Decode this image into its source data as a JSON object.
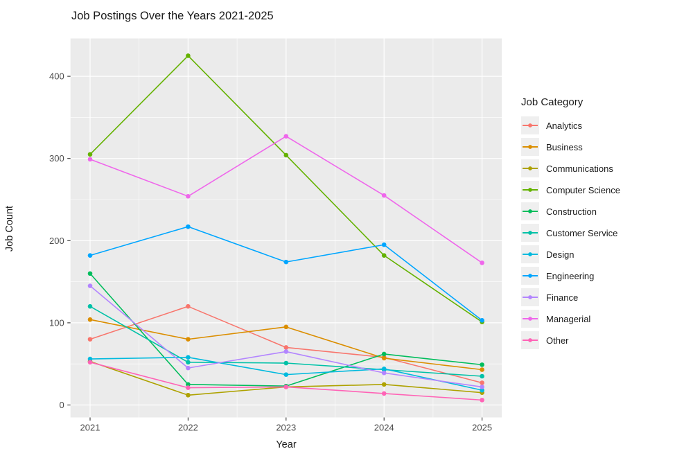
{
  "chart_data": {
    "type": "line",
    "title": "Job Postings Over the Years 2021-2025",
    "xlabel": "Year",
    "ylabel": "Job Count",
    "legend_title": "Job Category",
    "legend_position": "right",
    "panel_background": "#EBEBEB",
    "grid": "white major and minor gridlines on gray panel",
    "x": [
      2021,
      2022,
      2023,
      2024,
      2025
    ],
    "x_tick_labels": [
      "2021",
      "2022",
      "2023",
      "2024",
      "2025"
    ],
    "y_ticks": [
      0,
      100,
      200,
      300,
      400
    ],
    "y_tick_labels": [
      "0",
      "100",
      "200",
      "300",
      "400"
    ],
    "ylim": [
      -15,
      446
    ],
    "xlim": [
      2020.8,
      2025.2
    ],
    "series": [
      {
        "name": "Analytics",
        "color": "#F8766D",
        "values": [
          80,
          120,
          70,
          58,
          27
        ]
      },
      {
        "name": "Business",
        "color": "#DB8E00",
        "values": [
          104,
          80,
          95,
          57,
          43
        ]
      },
      {
        "name": "Communications",
        "color": "#AEA200",
        "values": [
          53,
          12,
          22,
          25,
          15
        ]
      },
      {
        "name": "Computer Science",
        "color": "#64B200",
        "values": [
          305,
          425,
          304,
          182,
          101
        ]
      },
      {
        "name": "Construction",
        "color": "#00BD5C",
        "values": [
          160,
          25,
          23,
          62,
          49
        ]
      },
      {
        "name": "Customer Service",
        "color": "#00C1A7",
        "values": [
          120,
          52,
          51,
          43,
          35
        ]
      },
      {
        "name": "Design",
        "color": "#00BADE",
        "values": [
          56,
          58,
          37,
          44,
          18
        ]
      },
      {
        "name": "Engineering",
        "color": "#00A6FF",
        "values": [
          182,
          217,
          174,
          195,
          103
        ]
      },
      {
        "name": "Finance",
        "color": "#B385FF",
        "values": [
          145,
          45,
          65,
          39,
          22
        ]
      },
      {
        "name": "Managerial",
        "color": "#EF67EB",
        "values": [
          299,
          254,
          327,
          255,
          173
        ]
      },
      {
        "name": "Other",
        "color": "#FF63B6",
        "values": [
          52,
          21,
          22,
          14,
          6
        ]
      }
    ]
  }
}
